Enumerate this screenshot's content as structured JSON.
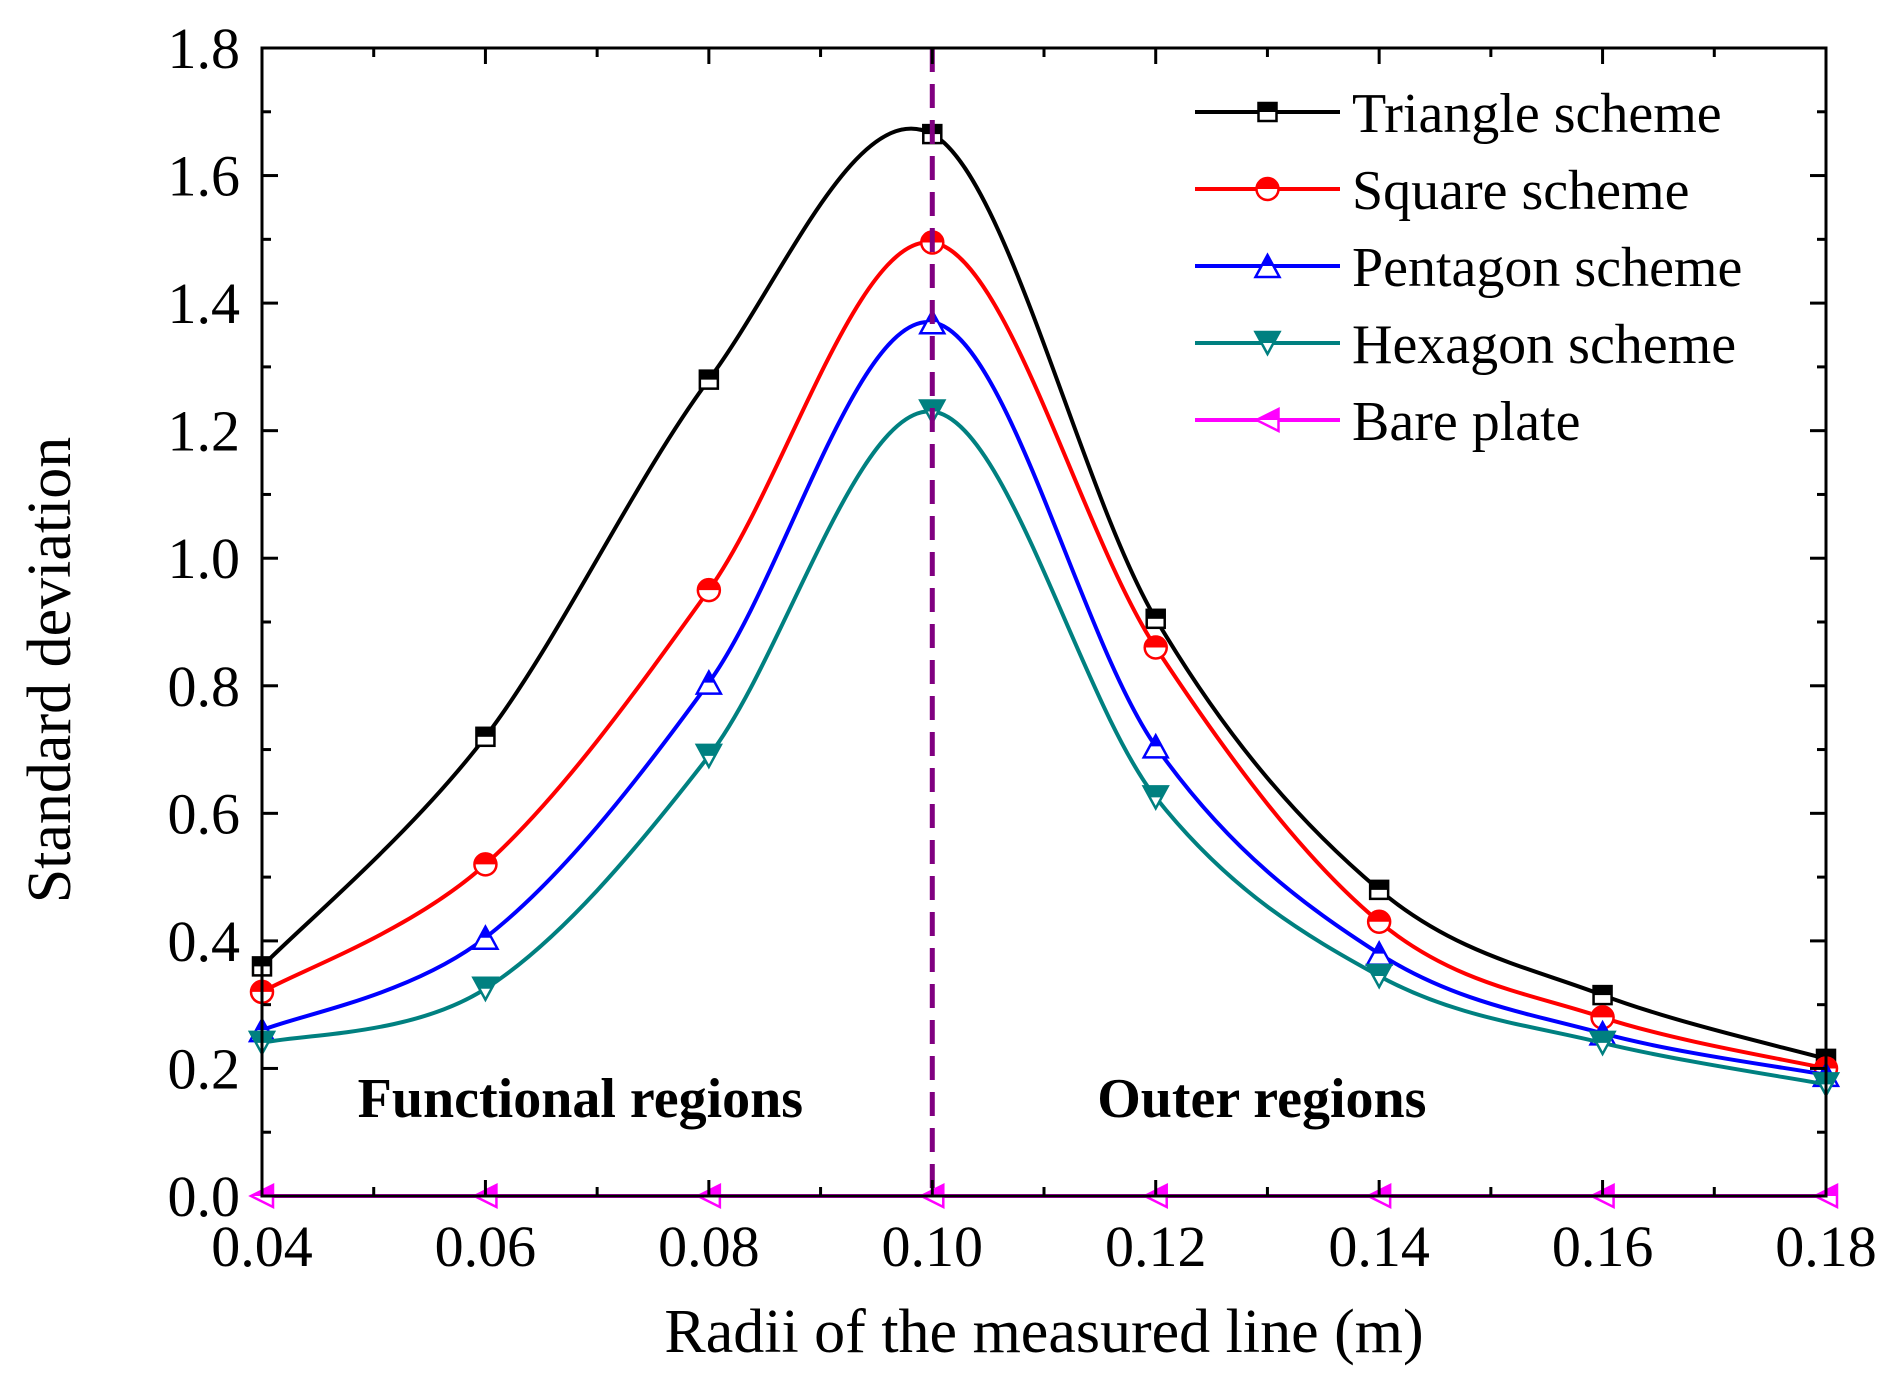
{
  "colors": {
    "triangle": "#000000",
    "square": "#ff0000",
    "pentagon": "#0000ff",
    "hexagon": "#008080",
    "bare": "#ff00ff",
    "divider": "#800080"
  },
  "chart_data": {
    "type": "line",
    "title": "",
    "xlabel": "Radii of the measured line (m)",
    "ylabel": "Standard deviation",
    "xlim": [
      0.04,
      0.18
    ],
    "ylim": [
      0.0,
      1.8
    ],
    "x": [
      0.04,
      0.06,
      0.08,
      0.1,
      0.12,
      0.14,
      0.16,
      0.18
    ],
    "xticks": [
      "0.04",
      "0.06",
      "0.08",
      "0.10",
      "0.12",
      "0.14",
      "0.16",
      "0.18"
    ],
    "yticks": [
      "0.0",
      "0.2",
      "0.4",
      "0.6",
      "0.8",
      "1.0",
      "1.2",
      "1.4",
      "1.6",
      "1.8"
    ],
    "grid": false,
    "legend_position": "top-right",
    "series": [
      {
        "name": "Triangle scheme",
        "marker": "square",
        "values": [
          0.36,
          0.72,
          1.28,
          1.665,
          0.905,
          0.48,
          0.315,
          0.215
        ]
      },
      {
        "name": "Square scheme",
        "marker": "circle",
        "values": [
          0.32,
          0.52,
          0.95,
          1.495,
          0.86,
          0.43,
          0.28,
          0.2
        ]
      },
      {
        "name": "Pentagon scheme",
        "marker": "triangle-up",
        "values": [
          0.26,
          0.405,
          0.805,
          1.37,
          0.705,
          0.38,
          0.255,
          0.19
        ]
      },
      {
        "name": "Hexagon scheme",
        "marker": "triangle-down",
        "values": [
          0.24,
          0.325,
          0.69,
          1.23,
          0.625,
          0.345,
          0.24,
          0.175
        ]
      },
      {
        "name": "Bare plate",
        "marker": "triangle-left",
        "values": [
          0.0,
          0.0,
          0.0,
          0.0,
          0.0,
          0.0,
          0.0,
          0.0
        ]
      }
    ],
    "reference_line": {
      "x": 0.1,
      "style": "dashed"
    },
    "annotations": [
      {
        "text": "Functional regions",
        "x": 0.0685,
        "y": 0.155
      },
      {
        "text": "Outer regions",
        "x": 0.1295,
        "y": 0.155
      }
    ]
  }
}
